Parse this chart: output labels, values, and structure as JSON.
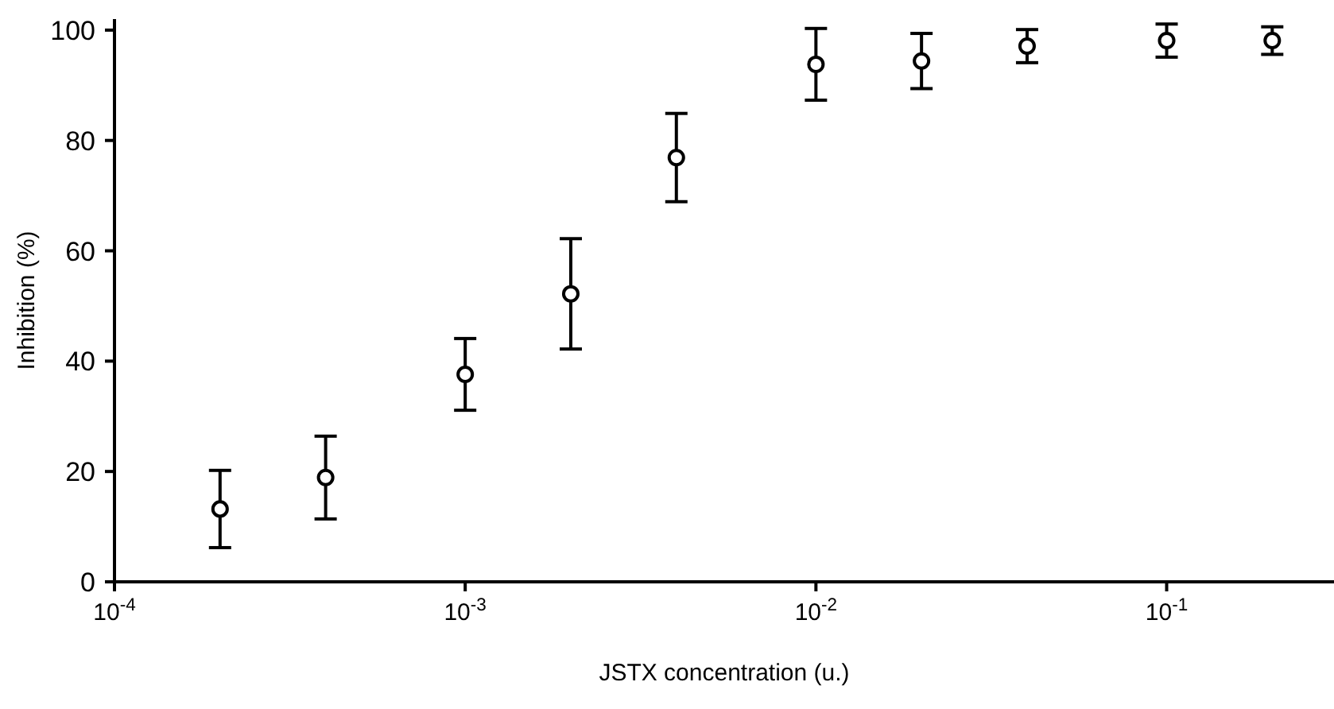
{
  "chart_data": {
    "type": "scatter",
    "xlabel": "JSTX concentration (u.)",
    "ylabel": "Inhibition (%)",
    "x": [
      0.0002,
      0.0004,
      0.001,
      0.002,
      0.004,
      0.01,
      0.02,
      0.04,
      0.1,
      0.2
    ],
    "series": [
      {
        "color": "#000000",
        "values": [
          13.2,
          18.9,
          37.6,
          52.2,
          76.9,
          93.8,
          94.4,
          97.1,
          98.1,
          98.1
        ],
        "errors": [
          7,
          7.5,
          6.5,
          10,
          8,
          6.5,
          5,
          3,
          3,
          2.5
        ]
      }
    ],
    "log": "x",
    "marker": "circle",
    "xlim": [
      0.0001,
      0.3
    ],
    "xticks": [
      {
        "value": 0.0001,
        "label": "10$^{-4}$"
      },
      {
        "value": 0.001,
        "label": "10$^{-3}$"
      },
      {
        "value": 0.01,
        "label": "10$^{-2}$"
      },
      {
        "value": 0.1,
        "label": "10$^{-1}$"
      }
    ],
    "ylim": [
      0,
      102
    ],
    "yticks": [
      0,
      20,
      40,
      60,
      80,
      100
    ]
  }
}
